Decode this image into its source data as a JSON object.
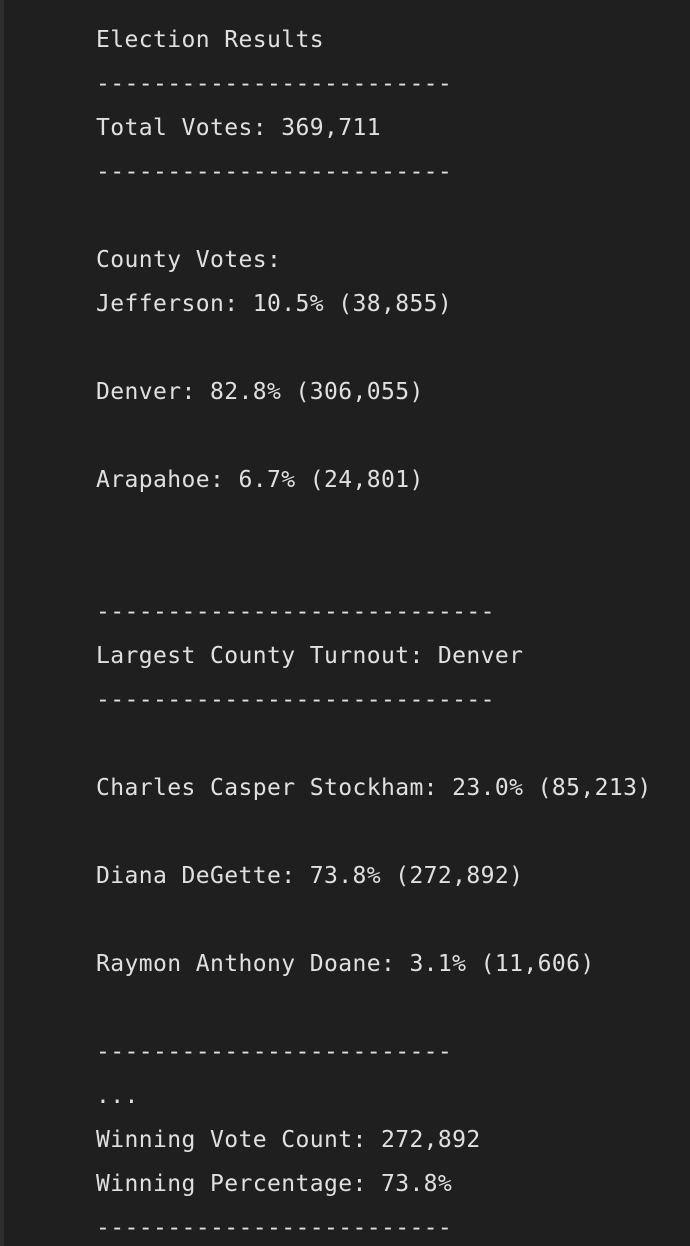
{
  "output": {
    "title": "Election Results",
    "sep_short": "-------------------------",
    "total_votes": "Total Votes: 369,711",
    "county_header": "County Votes:",
    "county_jefferson": "Jefferson: 10.5% (38,855)",
    "county_denver": "Denver: 82.8% (306,055)",
    "county_arapahoe": "Arapahoe: 6.7% (24,801)",
    "sep_long": "----------------------------",
    "largest_county": "Largest County Turnout: Denver",
    "candidate_stockham": "Charles Casper Stockham: 23.0% (85,213)",
    "candidate_degette": "Diana DeGette: 73.8% (272,892)",
    "candidate_doane": "Raymon Anthony Doane: 3.1% (11,606)",
    "ellipsis": "...",
    "winning_count": "Winning Vote Count: 272,892",
    "winning_percentage": "Winning Percentage: 73.8%"
  }
}
